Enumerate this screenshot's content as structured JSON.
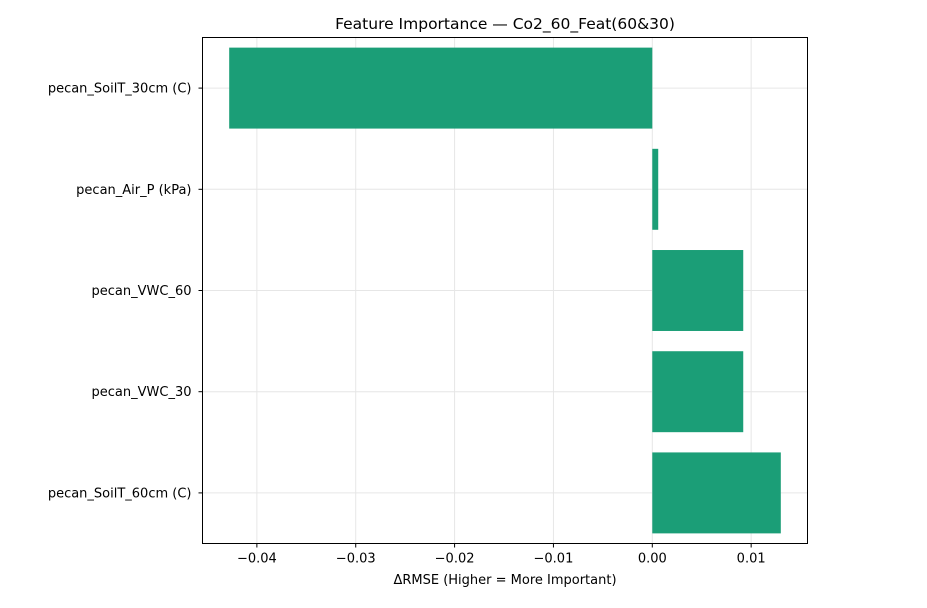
{
  "chart_data": {
    "type": "bar",
    "orientation": "horizontal",
    "title": "Feature Importance — Co2_60_Feat(60&30)",
    "xlabel": "ΔRMSE (Higher = More Important)",
    "ylabel": "",
    "categories": [
      "pecan_SoilT_30cm (C)",
      "pecan_Air_P (kPa)",
      "pecan_VWC_60",
      "pecan_VWC_30",
      "pecan_SoilT_60cm (C)"
    ],
    "values": [
      -0.0428,
      0.0006,
      0.0092,
      0.0092,
      0.013
    ],
    "xlim": [
      -0.0455,
      0.0157
    ],
    "xticks": [
      -0.04,
      -0.03,
      -0.02,
      -0.01,
      0.0,
      0.01
    ],
    "xtick_labels": [
      "−0.04",
      "−0.03",
      "−0.02",
      "−0.01",
      "0.00",
      "0.01"
    ],
    "grid": true,
    "bar_color": "#1b9e77",
    "grid_color": "#e6e6e6"
  }
}
